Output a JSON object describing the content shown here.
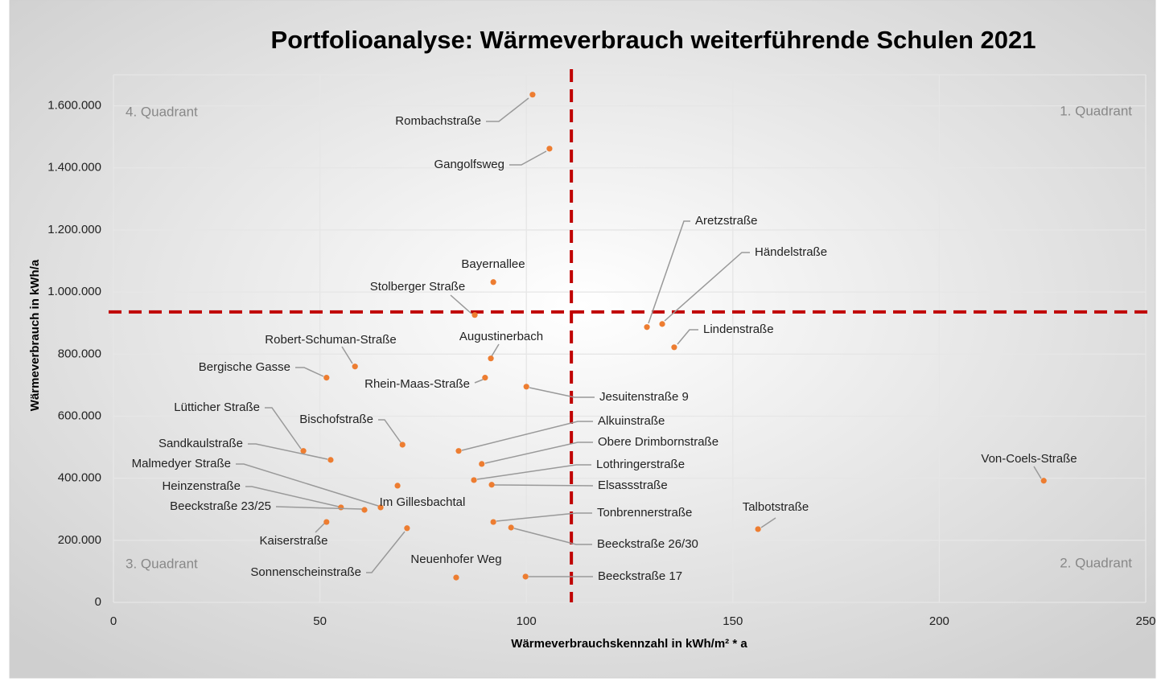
{
  "chart_data": {
    "type": "scatter",
    "title": "Portfolioanalyse: Wärmeverbrauch weiterführende Schulen 2021",
    "x_label": "Wärmeverbrauchskennzahl in kWh/m² * a",
    "y_label": "Wärmeverbrauch in kWh/a",
    "labels": [
      "Rombachstraße",
      "Gangolfsweg",
      "Aretzstraße",
      "Händelstraße",
      "Lindenstraße",
      "Bayernallee",
      "Stolberger Straße",
      "Augustinerbach",
      "Robert-Schuman-Straße",
      "Bergische Gasse",
      "Rhein-Maas-Straße",
      "Jesuitenstraße 9",
      "Lütticher Straße",
      "Bischofstraße",
      "Alkuinstraße",
      "Sandkaulstraße",
      "Obere Drimbornstraße",
      "Lothringerstraße",
      "Elsassstraße",
      "Malmedyer Straße",
      "Heinzenstraße",
      "Beeckstraße 23/25",
      "Im Gillesbachtal",
      "Kaiserstraße",
      "Sonnenscheinstraße",
      "Tonbrennerstraße",
      "Beeckstraße 26/30",
      "Neuenhofer Weg",
      "Beeckstraße 17",
      "Talbotstraße",
      "Von-Coels-Straße"
    ],
    "x": [
      101.5,
      105.6,
      129.2,
      132.9,
      135.8,
      92.0,
      87.5,
      91.4,
      58.5,
      51.6,
      90.0,
      100.0,
      46.0,
      70.0,
      83.6,
      52.6,
      89.2,
      87.3,
      91.6,
      64.7,
      55.1,
      60.8,
      68.8,
      51.6,
      71.1,
      92.0,
      96.3,
      83.0,
      99.8,
      156.1,
      225.3
    ],
    "values": [
      1636000,
      1462000,
      887000,
      897000,
      822000,
      1032000,
      926000,
      786000,
      760000,
      724000,
      724000,
      695000,
      488000,
      508000,
      488000,
      459000,
      446000,
      394000,
      379000,
      306000,
      306000,
      298000,
      376000,
      259000,
      239000,
      259000,
      241000,
      80000,
      83000,
      236000,
      392000
    ],
    "color": "#ed7d31",
    "x_threshold": 110.9,
    "y_threshold": 936000,
    "threshold_color": "#c00000",
    "quadrant_labels": [
      "1. Quadrant",
      "2. Quadrant",
      "3. Quadrant",
      "4. Quadrant"
    ],
    "xlim": [
      0,
      250
    ],
    "xticks": [
      0,
      50,
      100,
      150,
      200,
      250
    ],
    "ylim": [
      0,
      1700000
    ],
    "yticks": [
      0,
      {
        "value": 200000,
        "label": "200.000"
      },
      {
        "value": 400000,
        "label": "400.000"
      },
      {
        "value": 600000,
        "label": "600.000"
      },
      {
        "value": 800000,
        "label": "800.000"
      },
      {
        "value": 1000000,
        "label": "1.000.000"
      },
      {
        "value": 1200000,
        "label": "1.200.000"
      },
      {
        "value": 1400000,
        "label": "1.400.000"
      },
      {
        "value": 1600000,
        "label": "1.600.000"
      }
    ],
    "grid": true
  }
}
